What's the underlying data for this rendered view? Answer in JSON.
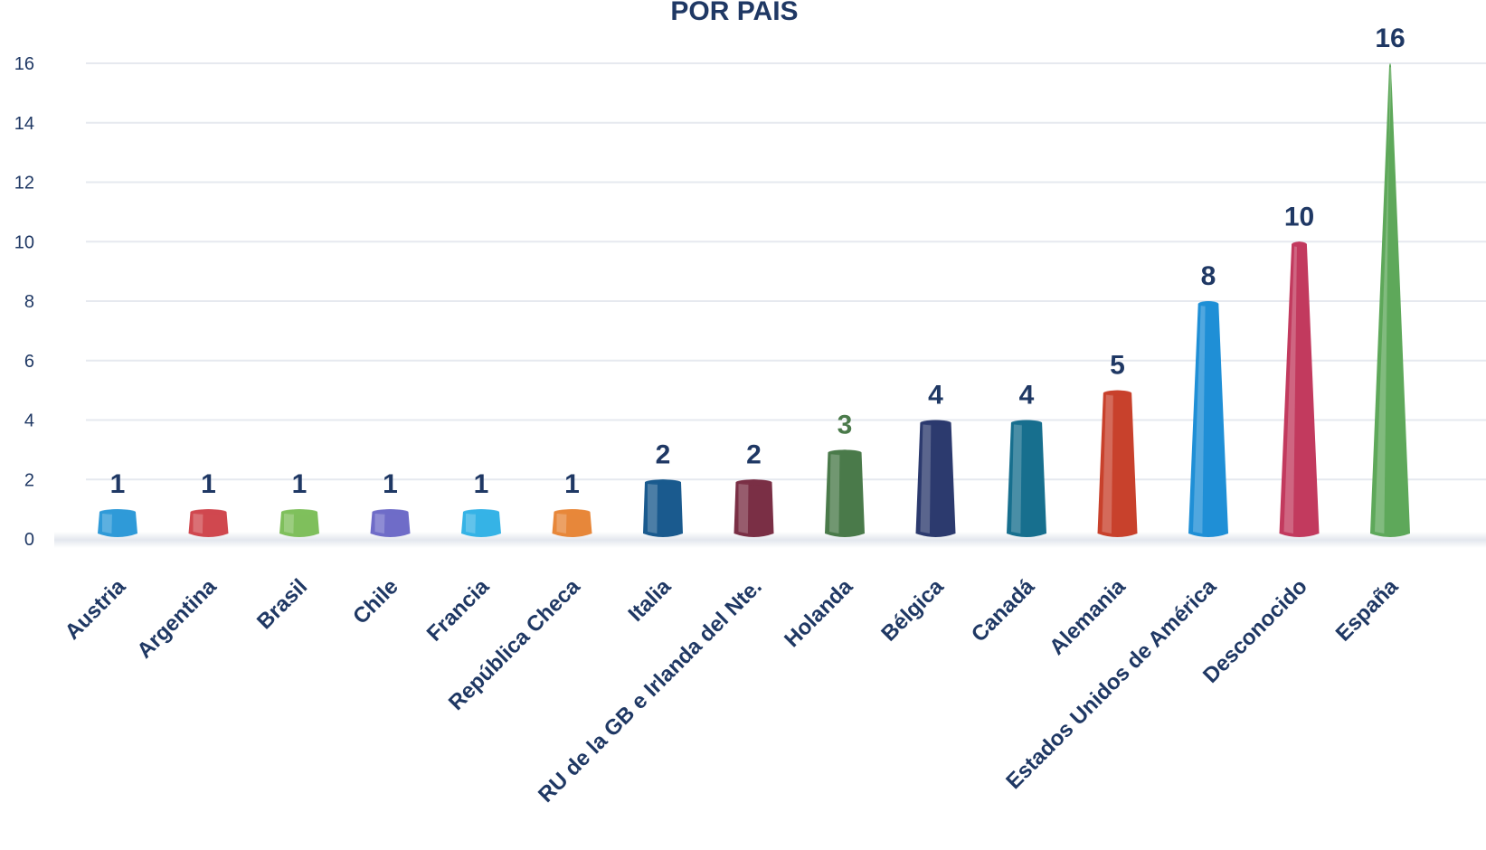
{
  "chart_data": {
    "type": "bar",
    "title": "POR PAIS",
    "xlabel": "",
    "ylabel": "",
    "ylim": [
      0,
      16
    ],
    "yticks": [
      0,
      2,
      4,
      6,
      8,
      10,
      12,
      14,
      16
    ],
    "grid": true,
    "legend": "none",
    "categories": [
      "Austria",
      "Argentina",
      "Brasil",
      "Chile",
      "Francia",
      "República Checa",
      "Italia",
      "RU de la GB e Irlanda del Nte.",
      "Holanda",
      "Bélgica",
      "Canadá",
      "Alemania",
      "Estados Unidos de América",
      "Desconocido",
      "España"
    ],
    "values": [
      1,
      1,
      1,
      1,
      1,
      1,
      2,
      2,
      3,
      4,
      4,
      5,
      8,
      10,
      16
    ],
    "colors": [
      "#2f9ad8",
      "#d0484f",
      "#7fbf5c",
      "#6f6cc8",
      "#35b3e6",
      "#e7873a",
      "#1a5a8e",
      "#7a2f45",
      "#4a7a4a",
      "#2c3a6e",
      "#176f8e",
      "#c8412c",
      "#1f8fd6",
      "#c23a5e",
      "#5ea85a"
    ],
    "label_colors": [
      "#1f3864",
      "#1f3864",
      "#1f3864",
      "#1f3864",
      "#1f3864",
      "#1f3864",
      "#1f3864",
      "#1f3864",
      "#4a7a4a",
      "#1f3864",
      "#1f3864",
      "#1f3864",
      "#1f3864",
      "#1f3864",
      "#1f3864"
    ]
  }
}
